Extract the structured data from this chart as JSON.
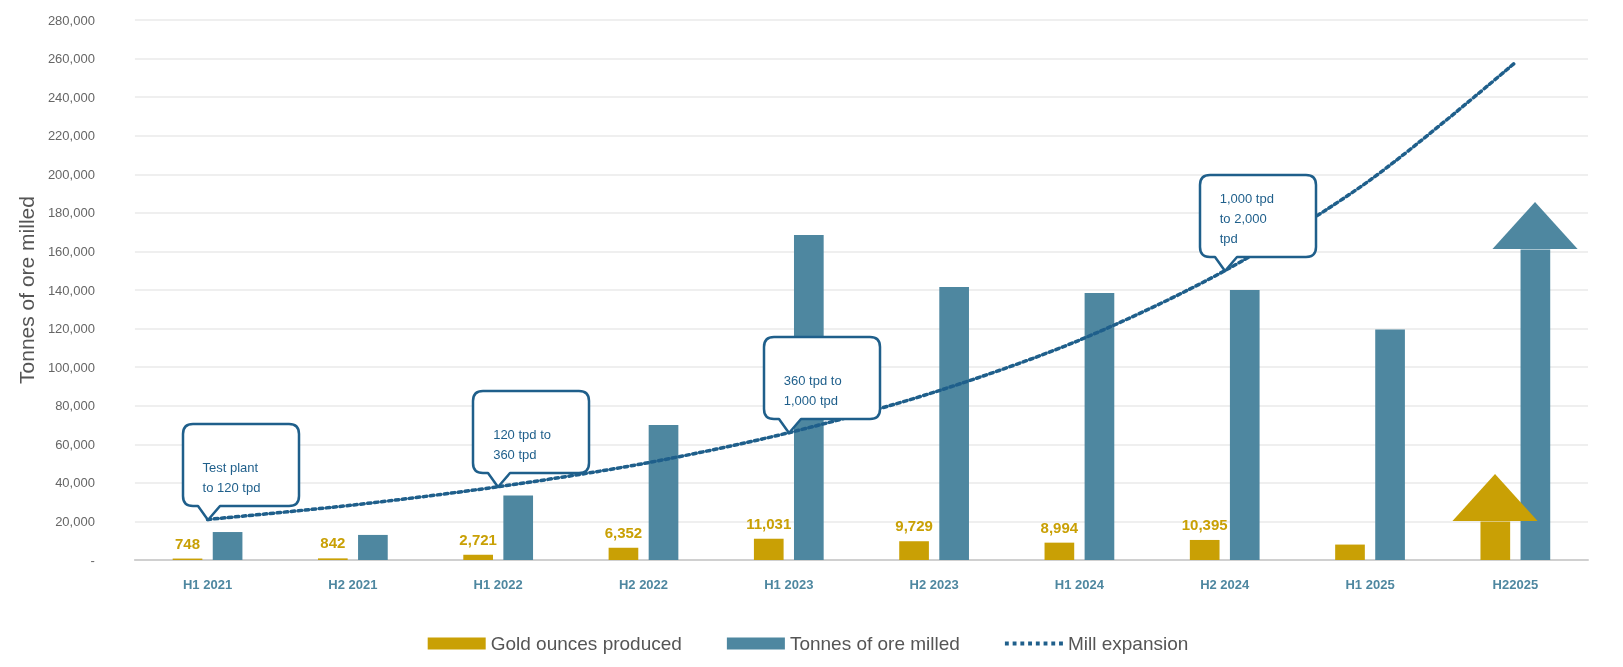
{
  "chart_data": {
    "type": "bar",
    "ylabel": "Tonnes of ore milled",
    "categories": [
      "H1 2021",
      "H2 2021",
      "H1 2022",
      "H2 2022",
      "H1 2023",
      "H2 2023",
      "H1 2024",
      "H2 2024",
      "H1 2025",
      "H22025"
    ],
    "series": [
      {
        "name": "Gold ounces produced",
        "color": "#c9a005",
        "values": [
          748,
          842,
          2721,
          6352,
          11031,
          9729,
          8994,
          10395,
          8000,
          20000
        ],
        "value_labels": [
          "748",
          "842",
          "2,721",
          "6,352",
          "11,031",
          "9,729",
          "8,994",
          "10,395",
          null,
          null
        ]
      },
      {
        "name": "Tonnes of ore milled",
        "color": "#4e87a0",
        "values": [
          14500,
          13000,
          33500,
          70000,
          168500,
          141500,
          138500,
          140000,
          119500,
          161000
        ]
      },
      {
        "name": "Mill expansion",
        "type": "line",
        "color": "#1f5f8b",
        "line_style": "dotted",
        "marker": "none",
        "values": [
          21000,
          28500,
          38000,
          50000,
          66000,
          87000,
          114000,
          150000,
          197000,
          258000
        ]
      }
    ],
    "ylim": [
      0,
      280000
    ],
    "yticks": [
      {
        "value": 0,
        "label": "-"
      },
      {
        "value": 20000,
        "label": "20,000"
      },
      {
        "value": 40000,
        "label": "40,000"
      },
      {
        "value": 60000,
        "label": "60,000"
      },
      {
        "value": 80000,
        "label": "80,000"
      },
      {
        "value": 100000,
        "label": "100,000"
      },
      {
        "value": 120000,
        "label": "120,000"
      },
      {
        "value": 140000,
        "label": "140,000"
      },
      {
        "value": 160000,
        "label": "160,000"
      },
      {
        "value": 180000,
        "label": "180,000"
      },
      {
        "value": 200000,
        "label": "200,000"
      },
      {
        "value": 220000,
        "label": "220,000"
      },
      {
        "value": 240000,
        "label": "240,000"
      },
      {
        "value": 260000,
        "label": "260,000"
      },
      {
        "value": 280000,
        "label": "280,000"
      }
    ],
    "grid": "y",
    "legend": "bottom",
    "annotations": [
      {
        "text": "Test plant to 120 tpd",
        "x": "H1 2021",
        "y": 21000
      },
      {
        "text": "120 tpd to 360 tpd",
        "x": "H1 2022",
        "y": 38000
      },
      {
        "text": "360 tpd to 1,000 tpd",
        "x": "H1 2023",
        "y": 66000
      },
      {
        "text": "1,000 tpd to 2,000 tpd",
        "x": "H2 2024",
        "y": 150000
      }
    ]
  }
}
